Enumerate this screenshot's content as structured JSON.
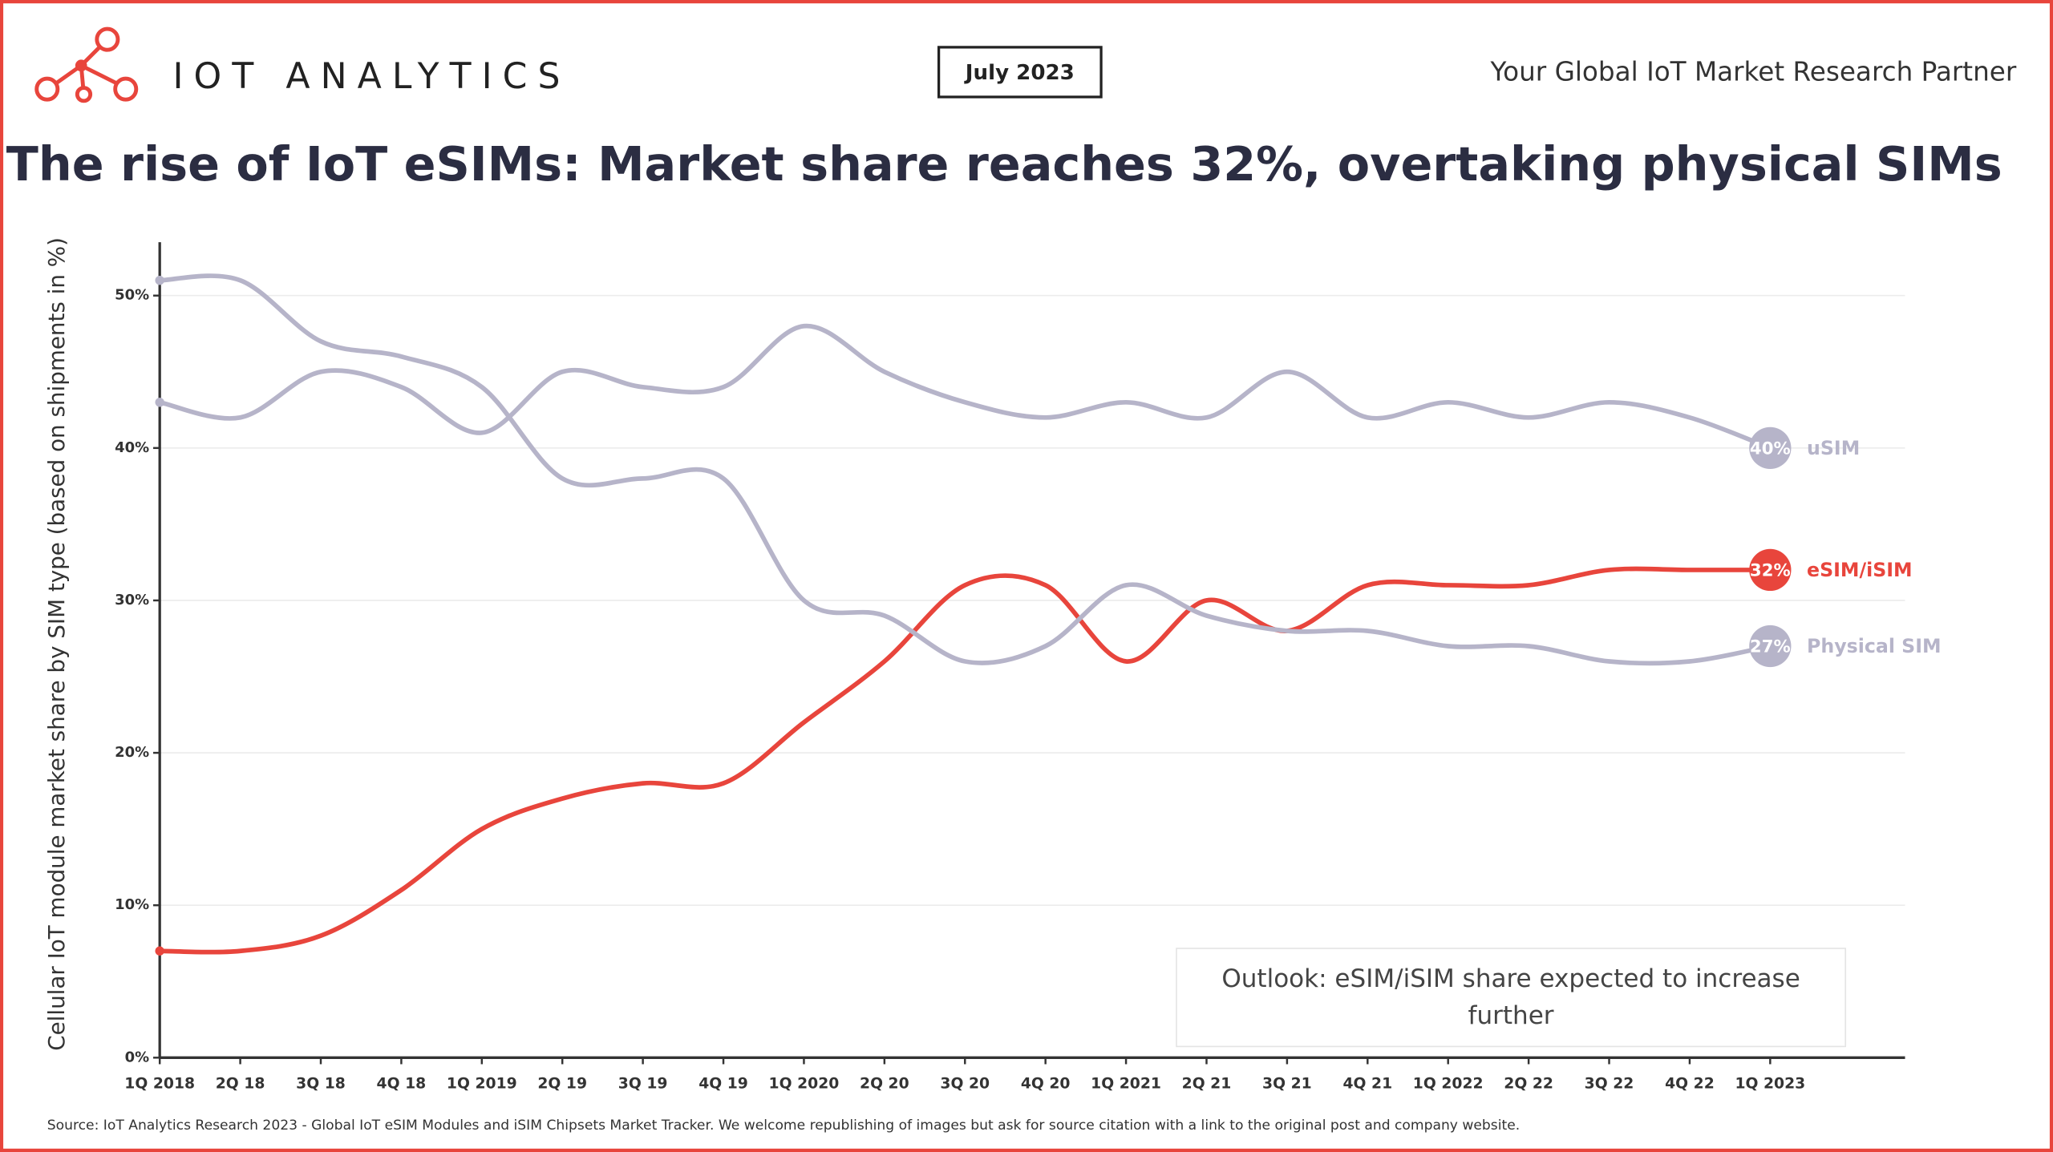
{
  "brand": "IOT ANALYTICS",
  "date": "July 2023",
  "tagline": "Your Global IoT Market Research Partner",
  "source": "Source: IoT Analytics Research 2023 - Global IoT eSIM Modules and iSIM Chipsets Market Tracker. We welcome republishing of images but ask for source citation with a link to the original post and company website.",
  "chart_data": {
    "type": "line",
    "title": "The rise of IoT eSIMs: Market share reaches 32%, overtaking physical SIMs",
    "y_label": "Cellular IoT module market share by SIM type (based on shipments in %)",
    "annotation": "Outlook: eSIM/iSIM share expected to increase further",
    "categories": [
      "1Q 2018",
      "2Q 18",
      "3Q 18",
      "4Q 18",
      "1Q 2019",
      "2Q 19",
      "3Q 19",
      "4Q 19",
      "1Q 2020",
      "2Q 20",
      "3Q 20",
      "4Q 20",
      "1Q 2021",
      "2Q 21",
      "3Q 21",
      "4Q 21",
      "1Q 2022",
      "2Q 22",
      "3Q 22",
      "4Q 22",
      "1Q 2023"
    ],
    "ylim": [
      0,
      53.5
    ],
    "yticks": [
      {
        "value": 0,
        "label": "0%"
      },
      {
        "value": 10,
        "label": "10%"
      },
      {
        "value": 20,
        "label": "20%"
      },
      {
        "value": 30,
        "label": "30%"
      },
      {
        "value": 40,
        "label": "40%"
      },
      {
        "value": 50,
        "label": "50%"
      }
    ],
    "grid": true,
    "series": [
      {
        "name": "uSIM",
        "color": "#b6b4c9",
        "values": [
          43,
          42,
          45,
          44,
          41,
          45,
          44,
          44,
          48,
          45,
          43,
          42,
          43,
          42,
          45,
          42,
          43,
          42,
          43,
          42,
          40
        ],
        "value_labels": [
          null,
          null,
          null,
          null,
          null,
          null,
          null,
          null,
          null,
          null,
          null,
          null,
          null,
          null,
          null,
          null,
          null,
          null,
          null,
          null,
          "40%"
        ]
      },
      {
        "name": "eSIM/iSIM",
        "color": "#e8453c",
        "values": [
          7,
          7,
          8,
          11,
          15,
          17,
          18,
          18,
          22,
          26,
          31,
          31,
          26,
          30,
          28,
          31,
          31,
          31,
          32,
          32,
          32
        ],
        "value_labels": [
          null,
          null,
          null,
          null,
          null,
          null,
          null,
          null,
          null,
          null,
          null,
          null,
          null,
          null,
          null,
          null,
          null,
          null,
          null,
          null,
          "32%"
        ]
      },
      {
        "name": "Physical SIM",
        "color": "#b6b4c9",
        "values": [
          51,
          51,
          47,
          46,
          44,
          38,
          38,
          38,
          30,
          29,
          26,
          27,
          31,
          29,
          28,
          28,
          27,
          27,
          26,
          26,
          27
        ],
        "value_labels": [
          null,
          null,
          null,
          null,
          null,
          null,
          null,
          null,
          null,
          null,
          null,
          null,
          null,
          null,
          null,
          null,
          null,
          null,
          null,
          null,
          "27%"
        ]
      }
    ]
  }
}
